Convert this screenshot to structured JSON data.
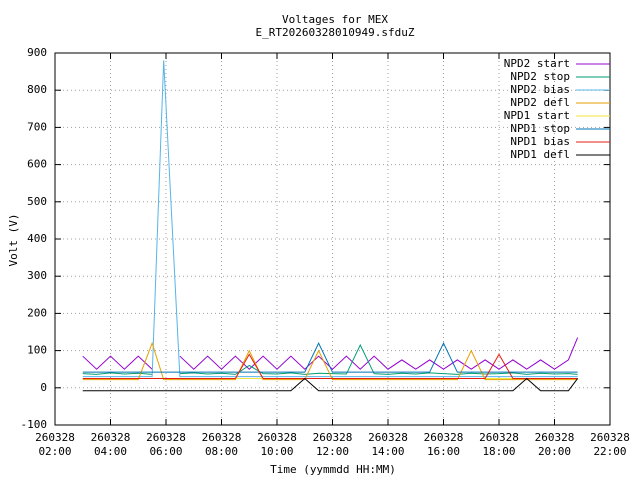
{
  "chart_data": {
    "type": "line",
    "title": "Voltages for MEX",
    "subtitle": "E_RT20260328010949.sfduZ",
    "x_label": "Time (yymmdd HH:MM)",
    "y_label": "Volt (V)",
    "xlim": [
      "260328 02:00",
      "260328 22:00"
    ],
    "xticks": [
      "260328 02:00",
      "260328 04:00",
      "260328 06:00",
      "260328 08:00",
      "260328 10:00",
      "260328 12:00",
      "260328 14:00",
      "260328 16:00",
      "260328 18:00",
      "260328 20:00",
      "260328 22:00"
    ],
    "ylim": [
      -100,
      900
    ],
    "yticks": [
      -100,
      0,
      100,
      200,
      300,
      400,
      500,
      600,
      700,
      800,
      900
    ],
    "grid": true,
    "legend_position": "top-right",
    "x": [
      "260328 03:00",
      "260328 03:30",
      "260328 04:00",
      "260328 04:30",
      "260328 05:00",
      "260328 05:30",
      "260328 05:55",
      "260328 06:30",
      "260328 07:00",
      "260328 07:30",
      "260328 08:00",
      "260328 08:30",
      "260328 09:00",
      "260328 09:30",
      "260328 10:00",
      "260328 10:30",
      "260328 11:00",
      "260328 11:30",
      "260328 12:00",
      "260328 12:30",
      "260328 13:00",
      "260328 13:30",
      "260328 14:00",
      "260328 14:30",
      "260328 15:00",
      "260328 15:30",
      "260328 16:00",
      "260328 16:30",
      "260328 17:00",
      "260328 17:30",
      "260328 18:00",
      "260328 18:30",
      "260328 19:00",
      "260328 19:30",
      "260328 20:00",
      "260328 20:30",
      "260328 20:50"
    ],
    "series": [
      {
        "name": "NPD2 start",
        "color": "#9400d3",
        "values": [
          85,
          50,
          85,
          50,
          85,
          50,
          null,
          85,
          50,
          85,
          50,
          85,
          50,
          85,
          50,
          85,
          50,
          85,
          50,
          85,
          50,
          85,
          50,
          75,
          50,
          75,
          50,
          75,
          50,
          75,
          50,
          75,
          50,
          75,
          50,
          75,
          135
        ]
      },
      {
        "name": "NPD2 stop",
        "color": "#009e73",
        "values": [
          38,
          36,
          40,
          37,
          39,
          36,
          null,
          38,
          40,
          37,
          39,
          36,
          60,
          38,
          37,
          40,
          36,
          39,
          38,
          37,
          115,
          38,
          36,
          39,
          37,
          40,
          38,
          36,
          39,
          37,
          38,
          40,
          36,
          39,
          37,
          38,
          36
        ]
      },
      {
        "name": "NPD2 bias",
        "color": "#56b4e9",
        "values": [
          30,
          30,
          30,
          30,
          30,
          30,
          880,
          30,
          30,
          30,
          30,
          30,
          30,
          30,
          30,
          30,
          30,
          30,
          30,
          30,
          30,
          30,
          30,
          30,
          30,
          30,
          30,
          30,
          30,
          30,
          30,
          30,
          30,
          30,
          30,
          30,
          30
        ]
      },
      {
        "name": "NPD2 defl",
        "color": "#e69f00",
        "values": [
          22,
          22,
          22,
          22,
          22,
          120,
          22,
          22,
          22,
          22,
          22,
          22,
          100,
          22,
          22,
          22,
          22,
          100,
          22,
          22,
          22,
          22,
          22,
          22,
          22,
          22,
          22,
          22,
          100,
          22,
          22,
          22,
          22,
          22,
          22,
          22,
          22
        ]
      },
      {
        "name": "NPD1 start",
        "color": "#f0e442",
        "values": [
          25,
          25,
          25,
          25,
          25,
          25,
          25,
          25,
          25,
          25,
          25,
          25,
          25,
          25,
          25,
          25,
          25,
          25,
          25,
          25,
          25,
          25,
          25,
          25,
          25,
          25,
          25,
          25,
          25,
          25,
          25,
          25,
          25,
          25,
          25,
          25,
          25
        ]
      },
      {
        "name": "NPD1 stop",
        "color": "#0072b2",
        "values": [
          42,
          42,
          42,
          42,
          42,
          42,
          42,
          42,
          42,
          42,
          42,
          42,
          42,
          42,
          42,
          42,
          42,
          120,
          42,
          42,
          42,
          42,
          42,
          42,
          42,
          42,
          120,
          42,
          42,
          42,
          42,
          42,
          42,
          42,
          42,
          42,
          42
        ]
      },
      {
        "name": "NPD1 bias",
        "color": "#e51e10",
        "values": [
          25,
          25,
          25,
          25,
          25,
          25,
          25,
          25,
          25,
          25,
          25,
          25,
          90,
          25,
          25,
          25,
          25,
          25,
          25,
          25,
          25,
          25,
          25,
          25,
          25,
          25,
          25,
          25,
          25,
          25,
          90,
          25,
          25,
          25,
          25,
          25,
          25
        ]
      },
      {
        "name": "NPD1 defl",
        "color": "#000000",
        "values": [
          -8,
          -8,
          -8,
          -8,
          -8,
          -8,
          -8,
          -8,
          -8,
          -8,
          -8,
          -8,
          -8,
          -8,
          -8,
          -8,
          25,
          -8,
          -8,
          -8,
          -8,
          -8,
          -8,
          -8,
          -8,
          -8,
          -8,
          -8,
          -8,
          -8,
          -8,
          -8,
          25,
          -8,
          -8,
          -8,
          25
        ]
      }
    ]
  }
}
